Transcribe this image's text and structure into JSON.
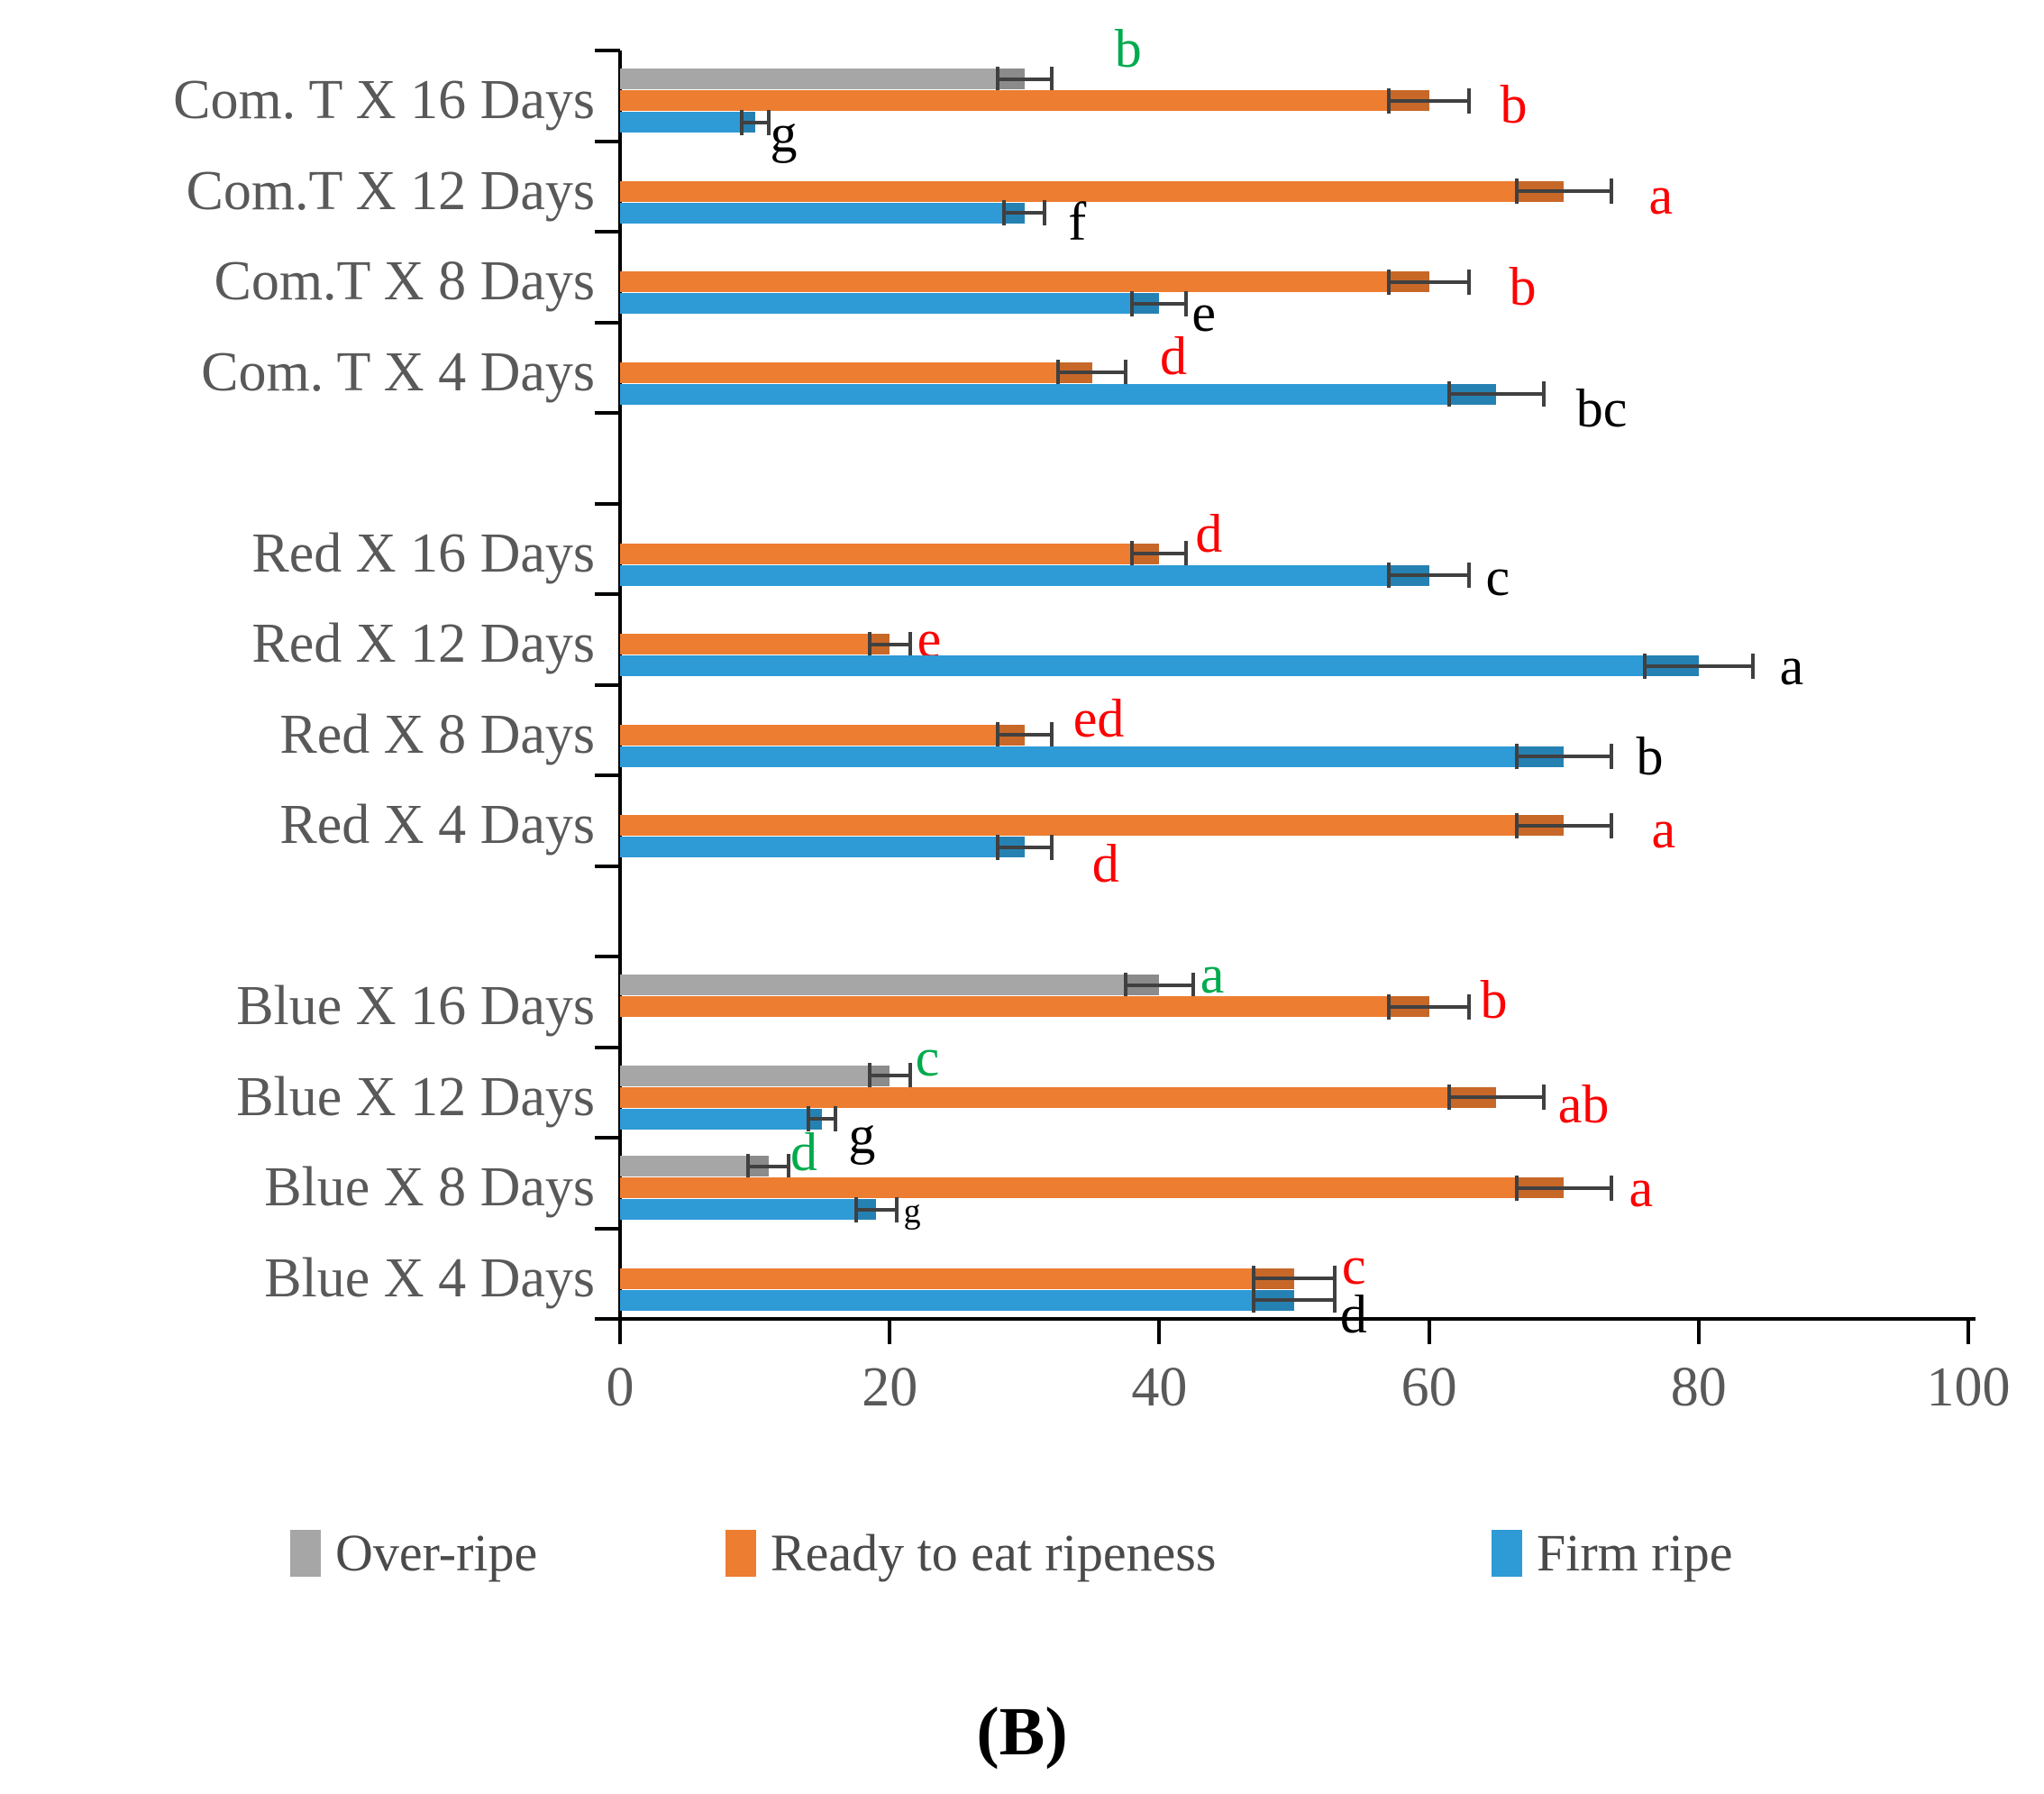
{
  "chart_data": {
    "type": "bar",
    "orientation": "horizontal",
    "title": "(B)",
    "x_axis": {
      "min": 0,
      "max": 100,
      "ticks": [
        0,
        20,
        40,
        60,
        80,
        100
      ],
      "tick_labels": [
        "0",
        "20",
        "40",
        "60",
        "80",
        "100"
      ],
      "grid": false
    },
    "legend_position": "bottom",
    "series_meta": {
      "over_ripe": {
        "label": "Over-ripe",
        "color": "#A6A6A6"
      },
      "ready": {
        "label": "Ready to eat ripeness",
        "color": "#ED7D31"
      },
      "firm": {
        "label": "Firm ripe",
        "color": "#2E9AD6"
      }
    },
    "annotation_colors": {
      "green": "#00AB4E",
      "red": "#FC0204",
      "black": "#000000"
    },
    "groups": [
      {
        "name": "Com.T",
        "rows": [
          {
            "label": "Com. T X 16 Days",
            "bars": [
              {
                "series": "over_ripe",
                "value": 30,
                "err": 2,
                "letter": "b",
                "letter_color": "green",
                "dx": 70,
                "dy": -34
              },
              {
                "series": "ready",
                "value": 60,
                "err": 3,
                "letter": "b",
                "letter_color": "red",
                "dx": 34,
                "dy": 4
              },
              {
                "series": "firm",
                "value": 10,
                "err": 1,
                "letter": "g",
                "letter_color": "black",
                "dx": 2,
                "dy": 12
              }
            ]
          },
          {
            "label": "Com.T X 12 Days",
            "bars": [
              {
                "series": "ready",
                "value": 70,
                "err": 3.5,
                "letter": "a",
                "letter_color": "red",
                "dx": 42,
                "dy": 5
              },
              {
                "series": "firm",
                "value": 30,
                "err": 1.5,
                "letter": "f",
                "letter_color": "black",
                "dx": 26,
                "dy": 10
              }
            ]
          },
          {
            "label": "Com.T X 8 Days",
            "bars": [
              {
                "series": "ready",
                "value": 60,
                "err": 3,
                "letter": "b",
                "letter_color": "red",
                "dx": 44,
                "dy": 5
              },
              {
                "series": "firm",
                "value": 40,
                "err": 2,
                "letter": "e",
                "letter_color": "black",
                "dx": 6,
                "dy": 10
              }
            ]
          },
          {
            "label": "Com. T X 4 Days",
            "bars": [
              {
                "series": "ready",
                "value": 35,
                "err": 2.5,
                "letter": "d",
                "letter_color": "red",
                "dx": 38,
                "dy": -18
              },
              {
                "series": "firm",
                "value": 65,
                "err": 3.5,
                "letter": "bc",
                "letter_color": "black",
                "dx": 36,
                "dy": 16
              }
            ]
          }
        ]
      },
      {
        "name": "Red",
        "rows": [
          {
            "label": "Red X 16 Days",
            "bars": [
              {
                "series": "ready",
                "value": 40,
                "err": 2,
                "letter": "d",
                "letter_color": "red",
                "dx": 10,
                "dy": -22
              },
              {
                "series": "firm",
                "value": 60,
                "err": 3,
                "letter": "c",
                "letter_color": "black",
                "dx": 18,
                "dy": 2
              }
            ]
          },
          {
            "label": "Red X 12 Days",
            "bars": [
              {
                "series": "ready",
                "value": 20,
                "err": 1.5,
                "letter": "e",
                "letter_color": "red",
                "dx": 8,
                "dy": -6
              },
              {
                "series": "firm",
                "value": 80,
                "err": 4,
                "letter": "a",
                "letter_color": "black",
                "dx": 30,
                "dy": 0
              }
            ]
          },
          {
            "label": "Red X 8 Days",
            "bars": [
              {
                "series": "ready",
                "value": 30,
                "err": 2,
                "letter": "ed",
                "letter_color": "red",
                "dx": 24,
                "dy": -18
              },
              {
                "series": "firm",
                "value": 70,
                "err": 3.5,
                "letter": "b",
                "letter_color": "black",
                "dx": 28,
                "dy": 0
              }
            ]
          },
          {
            "label": "Red X 4 Days",
            "bars": [
              {
                "series": "ready",
                "value": 70,
                "err": 3.5,
                "letter": "a",
                "letter_color": "red",
                "dx": 45,
                "dy": 4
              },
              {
                "series": "firm",
                "value": 30,
                "err": 2,
                "letter": "d",
                "letter_color": "red",
                "dx": 45,
                "dy": 18
              }
            ]
          }
        ]
      },
      {
        "name": "Blue",
        "rows": [
          {
            "label": "Blue X 16 Days",
            "bars": [
              {
                "series": "over_ripe",
                "value": 40,
                "err": 2.5,
                "letter": "a",
                "letter_color": "green",
                "dx": 8,
                "dy": -12
              },
              {
                "series": "ready",
                "value": 60,
                "err": 3,
                "letter": "b",
                "letter_color": "red",
                "dx": 12,
                "dy": -8
              }
            ]
          },
          {
            "label": "Blue X 12 Days",
            "bars": [
              {
                "series": "over_ripe",
                "value": 20,
                "err": 1.5,
                "letter": "c",
                "letter_color": "green",
                "dx": 6,
                "dy": -20
              },
              {
                "series": "ready",
                "value": 65,
                "err": 3.5,
                "letter": "ab",
                "letter_color": "red",
                "dx": 16,
                "dy": 8
              },
              {
                "series": "firm",
                "value": 15,
                "err": 1,
                "letter": "g",
                "letter_color": "black",
                "dx": 14,
                "dy": 18
              }
            ]
          },
          {
            "label": "Blue X 8 Days",
            "bars": [
              {
                "series": "over_ripe",
                "value": 11,
                "err": 1.5,
                "letter": "d",
                "letter_color": "green",
                "dx": 2,
                "dy": -16
              },
              {
                "series": "ready",
                "value": 70,
                "err": 3.5,
                "letter": "a",
                "letter_color": "red",
                "dx": 20,
                "dy": 0
              },
              {
                "series": "firm",
                "value": 19,
                "err": 1.5,
                "letter": "g",
                "letter_color": "black",
                "dx": 8,
                "dy": 2,
                "letter_size": 38
              }
            ]
          },
          {
            "label": "Blue X 4 Days",
            "bars": [
              {
                "series": "ready",
                "value": 50,
                "err": 3,
                "letter": "c",
                "letter_color": "red",
                "dx": 8,
                "dy": -14
              },
              {
                "series": "firm",
                "value": 50,
                "err": 3,
                "letter": "d",
                "letter_color": "black",
                "dx": 6,
                "dy": 16
              }
            ]
          }
        ]
      }
    ]
  }
}
